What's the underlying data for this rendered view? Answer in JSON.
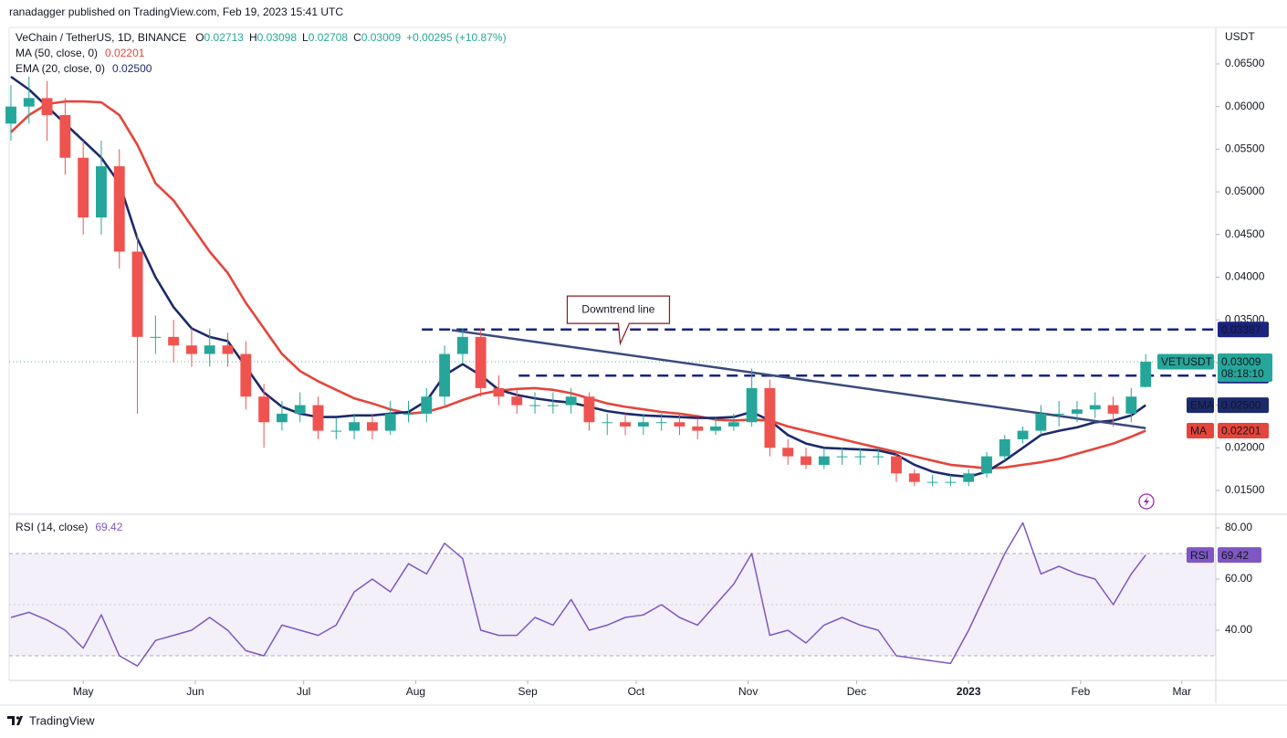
{
  "header": {
    "publisher": "ranadagger published on TradingView.com, Feb 19, 2023 15:41 UTC",
    "footer": "TradingView"
  },
  "chart_data": {
    "type": "candlestick",
    "title": "VeChain / TetherUS, 1D, BINANCE",
    "ohlc_labels": [
      "O",
      "H",
      "L",
      "C"
    ],
    "change": "+0.00295 (+10.87%)",
    "symbol": "VETUSDT",
    "countdown": "08:18:10",
    "unit": "USDT",
    "colors": {
      "up": "#26a69a",
      "down": "#ef5350"
    },
    "x": [
      10,
      15,
      20,
      25,
      30,
      35,
      40,
      45,
      50,
      55,
      60,
      65,
      70,
      75,
      80,
      85,
      90,
      95,
      100,
      105,
      110,
      115,
      120,
      125,
      130,
      135,
      140,
      145,
      150,
      155,
      160,
      165,
      170,
      175,
      180,
      185,
      190,
      195,
      200,
      205,
      210,
      215,
      220,
      225,
      230,
      235,
      240,
      245,
      250,
      255,
      260,
      265,
      270,
      275,
      280,
      285,
      290,
      295,
      300,
      305,
      310,
      315,
      320,
      324
    ],
    "open": [
      0.058,
      0.06,
      0.061,
      0.059,
      0.054,
      0.047,
      0.053,
      0.043,
      0.033,
      0.033,
      0.032,
      0.031,
      0.032,
      0.031,
      0.026,
      0.023,
      0.024,
      0.025,
      0.022,
      0.022,
      0.023,
      0.022,
      0.024,
      0.024,
      0.026,
      0.031,
      0.033,
      0.027,
      0.026,
      0.025,
      0.025,
      0.025,
      0.026,
      0.023,
      0.023,
      0.0225,
      0.023,
      0.023,
      0.0225,
      0.022,
      0.0225,
      0.023,
      0.027,
      0.02,
      0.019,
      0.018,
      0.019,
      0.019,
      0.019,
      0.019,
      0.017,
      0.016,
      0.016,
      0.016,
      0.017,
      0.019,
      0.021,
      0.022,
      0.024,
      0.024,
      0.0245,
      0.025,
      0.024,
      0.02713
    ],
    "high": [
      0.0625,
      0.0635,
      0.063,
      0.061,
      0.056,
      0.056,
      0.055,
      0.045,
      0.0355,
      0.035,
      0.034,
      0.034,
      0.0335,
      0.0325,
      0.0275,
      0.0255,
      0.0265,
      0.026,
      0.0235,
      0.024,
      0.024,
      0.0255,
      0.0255,
      0.027,
      0.032,
      0.034,
      0.034,
      0.0285,
      0.027,
      0.0265,
      0.0265,
      0.027,
      0.0265,
      0.024,
      0.024,
      0.024,
      0.024,
      0.024,
      0.0235,
      0.0235,
      0.024,
      0.0293,
      0.028,
      0.021,
      0.02,
      0.02,
      0.02,
      0.02,
      0.02,
      0.0195,
      0.0175,
      0.0168,
      0.0168,
      0.0175,
      0.0195,
      0.0215,
      0.0225,
      0.025,
      0.0255,
      0.0255,
      0.0265,
      0.026,
      0.027,
      0.03098
    ],
    "low": [
      0.056,
      0.058,
      0.056,
      0.052,
      0.045,
      0.045,
      0.041,
      0.024,
      0.031,
      0.03,
      0.0295,
      0.0295,
      0.0295,
      0.0245,
      0.02,
      0.022,
      0.023,
      0.021,
      0.021,
      0.021,
      0.021,
      0.0215,
      0.023,
      0.023,
      0.025,
      0.03,
      0.026,
      0.025,
      0.024,
      0.024,
      0.024,
      0.024,
      0.022,
      0.0215,
      0.0215,
      0.0215,
      0.022,
      0.0215,
      0.021,
      0.0215,
      0.022,
      0.0225,
      0.019,
      0.018,
      0.0175,
      0.0175,
      0.018,
      0.018,
      0.018,
      0.016,
      0.0155,
      0.0155,
      0.0155,
      0.0155,
      0.0165,
      0.0185,
      0.0205,
      0.0215,
      0.0225,
      0.023,
      0.0235,
      0.0225,
      0.023,
      0.02708
    ],
    "close": [
      0.06,
      0.061,
      0.059,
      0.054,
      0.047,
      0.053,
      0.043,
      0.033,
      0.033,
      0.032,
      0.031,
      0.032,
      0.031,
      0.026,
      0.023,
      0.024,
      0.025,
      0.022,
      0.022,
      0.023,
      0.022,
      0.024,
      0.024,
      0.026,
      0.031,
      0.033,
      0.027,
      0.026,
      0.025,
      0.025,
      0.025,
      0.026,
      0.023,
      0.023,
      0.0225,
      0.023,
      0.023,
      0.0225,
      0.022,
      0.0225,
      0.023,
      0.027,
      0.02,
      0.019,
      0.018,
      0.019,
      0.019,
      0.019,
      0.019,
      0.017,
      0.016,
      0.016,
      0.016,
      0.017,
      0.019,
      0.021,
      0.022,
      0.024,
      0.024,
      0.0245,
      0.025,
      0.024,
      0.026,
      0.03009
    ],
    "series": [
      {
        "name": "MA (50, close, 0)",
        "short": "MA",
        "color": "#e5453a",
        "values": [
          0.057,
          0.059,
          0.0603,
          0.0606,
          0.0606,
          0.0605,
          0.059,
          0.0555,
          0.051,
          0.049,
          0.046,
          0.043,
          0.0405,
          0.037,
          0.034,
          0.031,
          0.029,
          0.0278,
          0.0268,
          0.0258,
          0.0252,
          0.0245,
          0.024,
          0.0242,
          0.0248,
          0.0256,
          0.0263,
          0.0267,
          0.0269,
          0.027,
          0.0268,
          0.0264,
          0.0258,
          0.0252,
          0.0248,
          0.0245,
          0.0242,
          0.024,
          0.0237,
          0.0233,
          0.0232,
          0.0233,
          0.0232,
          0.0225,
          0.022,
          0.0215,
          0.021,
          0.0205,
          0.02,
          0.0195,
          0.019,
          0.0185,
          0.018,
          0.0178,
          0.0176,
          0.0177,
          0.018,
          0.0183,
          0.0187,
          0.0193,
          0.0199,
          0.0205,
          0.0213,
          0.02201
        ]
      },
      {
        "name": "EMA (20, close, 0)",
        "short": "EMA",
        "color": "#1b2a6b",
        "value_label": "0.02500",
        "values": [
          0.0635,
          0.062,
          0.06,
          0.058,
          0.056,
          0.054,
          0.051,
          0.0445,
          0.04,
          0.0365,
          0.034,
          0.033,
          0.0325,
          0.0295,
          0.0265,
          0.0248,
          0.024,
          0.0236,
          0.0236,
          0.0238,
          0.0238,
          0.024,
          0.0242,
          0.0255,
          0.0285,
          0.0298,
          0.0285,
          0.0268,
          0.0262,
          0.0258,
          0.0255,
          0.0253,
          0.0248,
          0.0243,
          0.024,
          0.0238,
          0.0237,
          0.0236,
          0.0235,
          0.0235,
          0.0236,
          0.0242,
          0.0232,
          0.0215,
          0.0205,
          0.02,
          0.0199,
          0.0198,
          0.0197,
          0.0192,
          0.018,
          0.0172,
          0.0168,
          0.0166,
          0.0172,
          0.0185,
          0.02,
          0.0215,
          0.022,
          0.0224,
          0.023,
          0.0232,
          0.0238,
          0.025
        ]
      }
    ],
    "xlim": [
      9.5,
      343.4
    ],
    "xticks": [
      {
        "value": 30,
        "label": "May"
      },
      {
        "value": 61,
        "label": "Jun"
      },
      {
        "value": 91,
        "label": "Jul"
      },
      {
        "value": 122,
        "label": "Aug"
      },
      {
        "value": 153,
        "label": "Sep"
      },
      {
        "value": 183,
        "label": "Oct"
      },
      {
        "value": 214,
        "label": "Nov"
      },
      {
        "value": 244,
        "label": "Dec"
      },
      {
        "value": 275,
        "label": "2023",
        "major": true
      },
      {
        "value": 306,
        "label": "Feb"
      },
      {
        "value": 334,
        "label": "Mar"
      }
    ],
    "ylim": [
      0.01232,
      0.06928
    ],
    "yticks": [
      {
        "value": 0.015,
        "label": "0.01500"
      },
      {
        "value": 0.02,
        "label": "0.02000"
      },
      {
        "value": 0.025,
        "label": "0.02500"
      },
      {
        "value": 0.03,
        "label": "0.03000"
      },
      {
        "value": 0.035,
        "label": "0.03500"
      },
      {
        "value": 0.04,
        "label": "0.04000"
      },
      {
        "value": 0.045,
        "label": "0.04500"
      },
      {
        "value": 0.05,
        "label": "0.05000"
      },
      {
        "value": 0.055,
        "label": "0.05500"
      },
      {
        "value": 0.06,
        "label": "0.06000"
      },
      {
        "value": 0.065,
        "label": "0.06500"
      }
    ],
    "levels": [
      {
        "value": 0.03387,
        "start": 123.7,
        "color": "#1a237e"
      },
      {
        "value": 0.02846,
        "start": 150.5,
        "color": "#1a237e"
      }
    ],
    "trendline": {
      "x": [
        132,
        324
      ],
      "y": [
        0.0338,
        0.0223
      ],
      "label": "Downtrend line",
      "color": "#3a4b7c"
    },
    "rsi": {
      "name": "RSI (14, close)",
      "short": "RSI",
      "color": "#7e57c2",
      "values": [
        45,
        47,
        44,
        40,
        33,
        46,
        30,
        26,
        36,
        38,
        40,
        45,
        40,
        32,
        30,
        42,
        40,
        38,
        42,
        55,
        60,
        55,
        66,
        62,
        74,
        68,
        40,
        38,
        38,
        45,
        42,
        52,
        40,
        42,
        45,
        46,
        50,
        45,
        42,
        50,
        58,
        70,
        38,
        40,
        35,
        42,
        45,
        42,
        40,
        30,
        29,
        28,
        27,
        40,
        55,
        70,
        82,
        62,
        65,
        62,
        60,
        50,
        62,
        69.42
      ],
      "ylim": [
        20.36,
        84.64
      ],
      "yticks": [
        {
          "value": 40,
          "label": "40.00"
        },
        {
          "value": 60,
          "label": "60.00"
        },
        {
          "value": 80,
          "label": "80.00"
        }
      ],
      "bands": [
        30,
        70
      ]
    }
  }
}
